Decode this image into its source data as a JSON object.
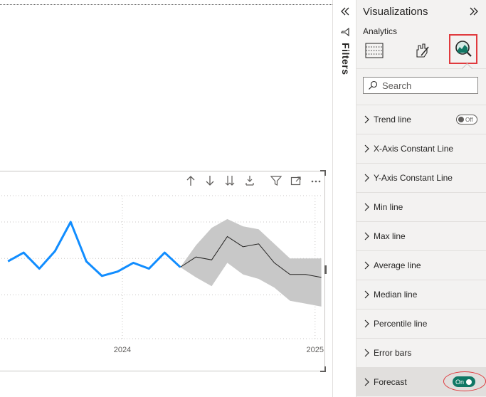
{
  "canvas": {
    "visual_header_icons": [
      {
        "name": "drill-up-icon"
      },
      {
        "name": "drill-down-icon"
      },
      {
        "name": "expand-all-down-icon"
      },
      {
        "name": "expand-next-level-icon"
      },
      {
        "name": "filter-icon"
      },
      {
        "name": "focus-mode-icon"
      },
      {
        "name": "more-options-icon"
      }
    ]
  },
  "chart_data": {
    "type": "line",
    "x_tick_labels": [
      "2024",
      "2025"
    ],
    "actual_series": {
      "color": "#118dff",
      "x": [
        0,
        1,
        2,
        3,
        4,
        5,
        6,
        7,
        8,
        9,
        10,
        11
      ],
      "y": [
        53,
        59,
        48,
        60,
        80,
        53,
        43,
        46,
        52,
        48,
        59,
        49
      ]
    },
    "forecast_series": {
      "color": "#252423",
      "x": [
        11,
        12,
        13,
        14,
        15,
        16,
        17,
        18,
        19,
        20
      ],
      "y": [
        49,
        56,
        54,
        70,
        63,
        65,
        52,
        44,
        44,
        42
      ],
      "upper": [
        49,
        64,
        76,
        82,
        77,
        75,
        65,
        55,
        55,
        55
      ],
      "lower": [
        49,
        42,
        36,
        52,
        44,
        41,
        35,
        26,
        24,
        22
      ],
      "band_color": "#c8c8c8"
    },
    "x_range": [
      -0.6,
      20.2
    ],
    "y_range": [
      0,
      100
    ],
    "grid": true
  },
  "filters": {
    "label": "Filters"
  },
  "viz": {
    "title": "Visualizations",
    "analytics_label": "Analytics",
    "search_placeholder": "Search",
    "items": [
      {
        "label": "Trend line"
      },
      {
        "label": "X-Axis Constant Line"
      },
      {
        "label": "Y-Axis Constant Line"
      },
      {
        "label": "Min line"
      },
      {
        "label": "Max line"
      },
      {
        "label": "Average line"
      },
      {
        "label": "Median line"
      },
      {
        "label": "Percentile line"
      },
      {
        "label": "Error bars"
      },
      {
        "label": "Forecast"
      }
    ],
    "trend_toggle_label": "Off",
    "forecast_toggle_label": "On"
  }
}
